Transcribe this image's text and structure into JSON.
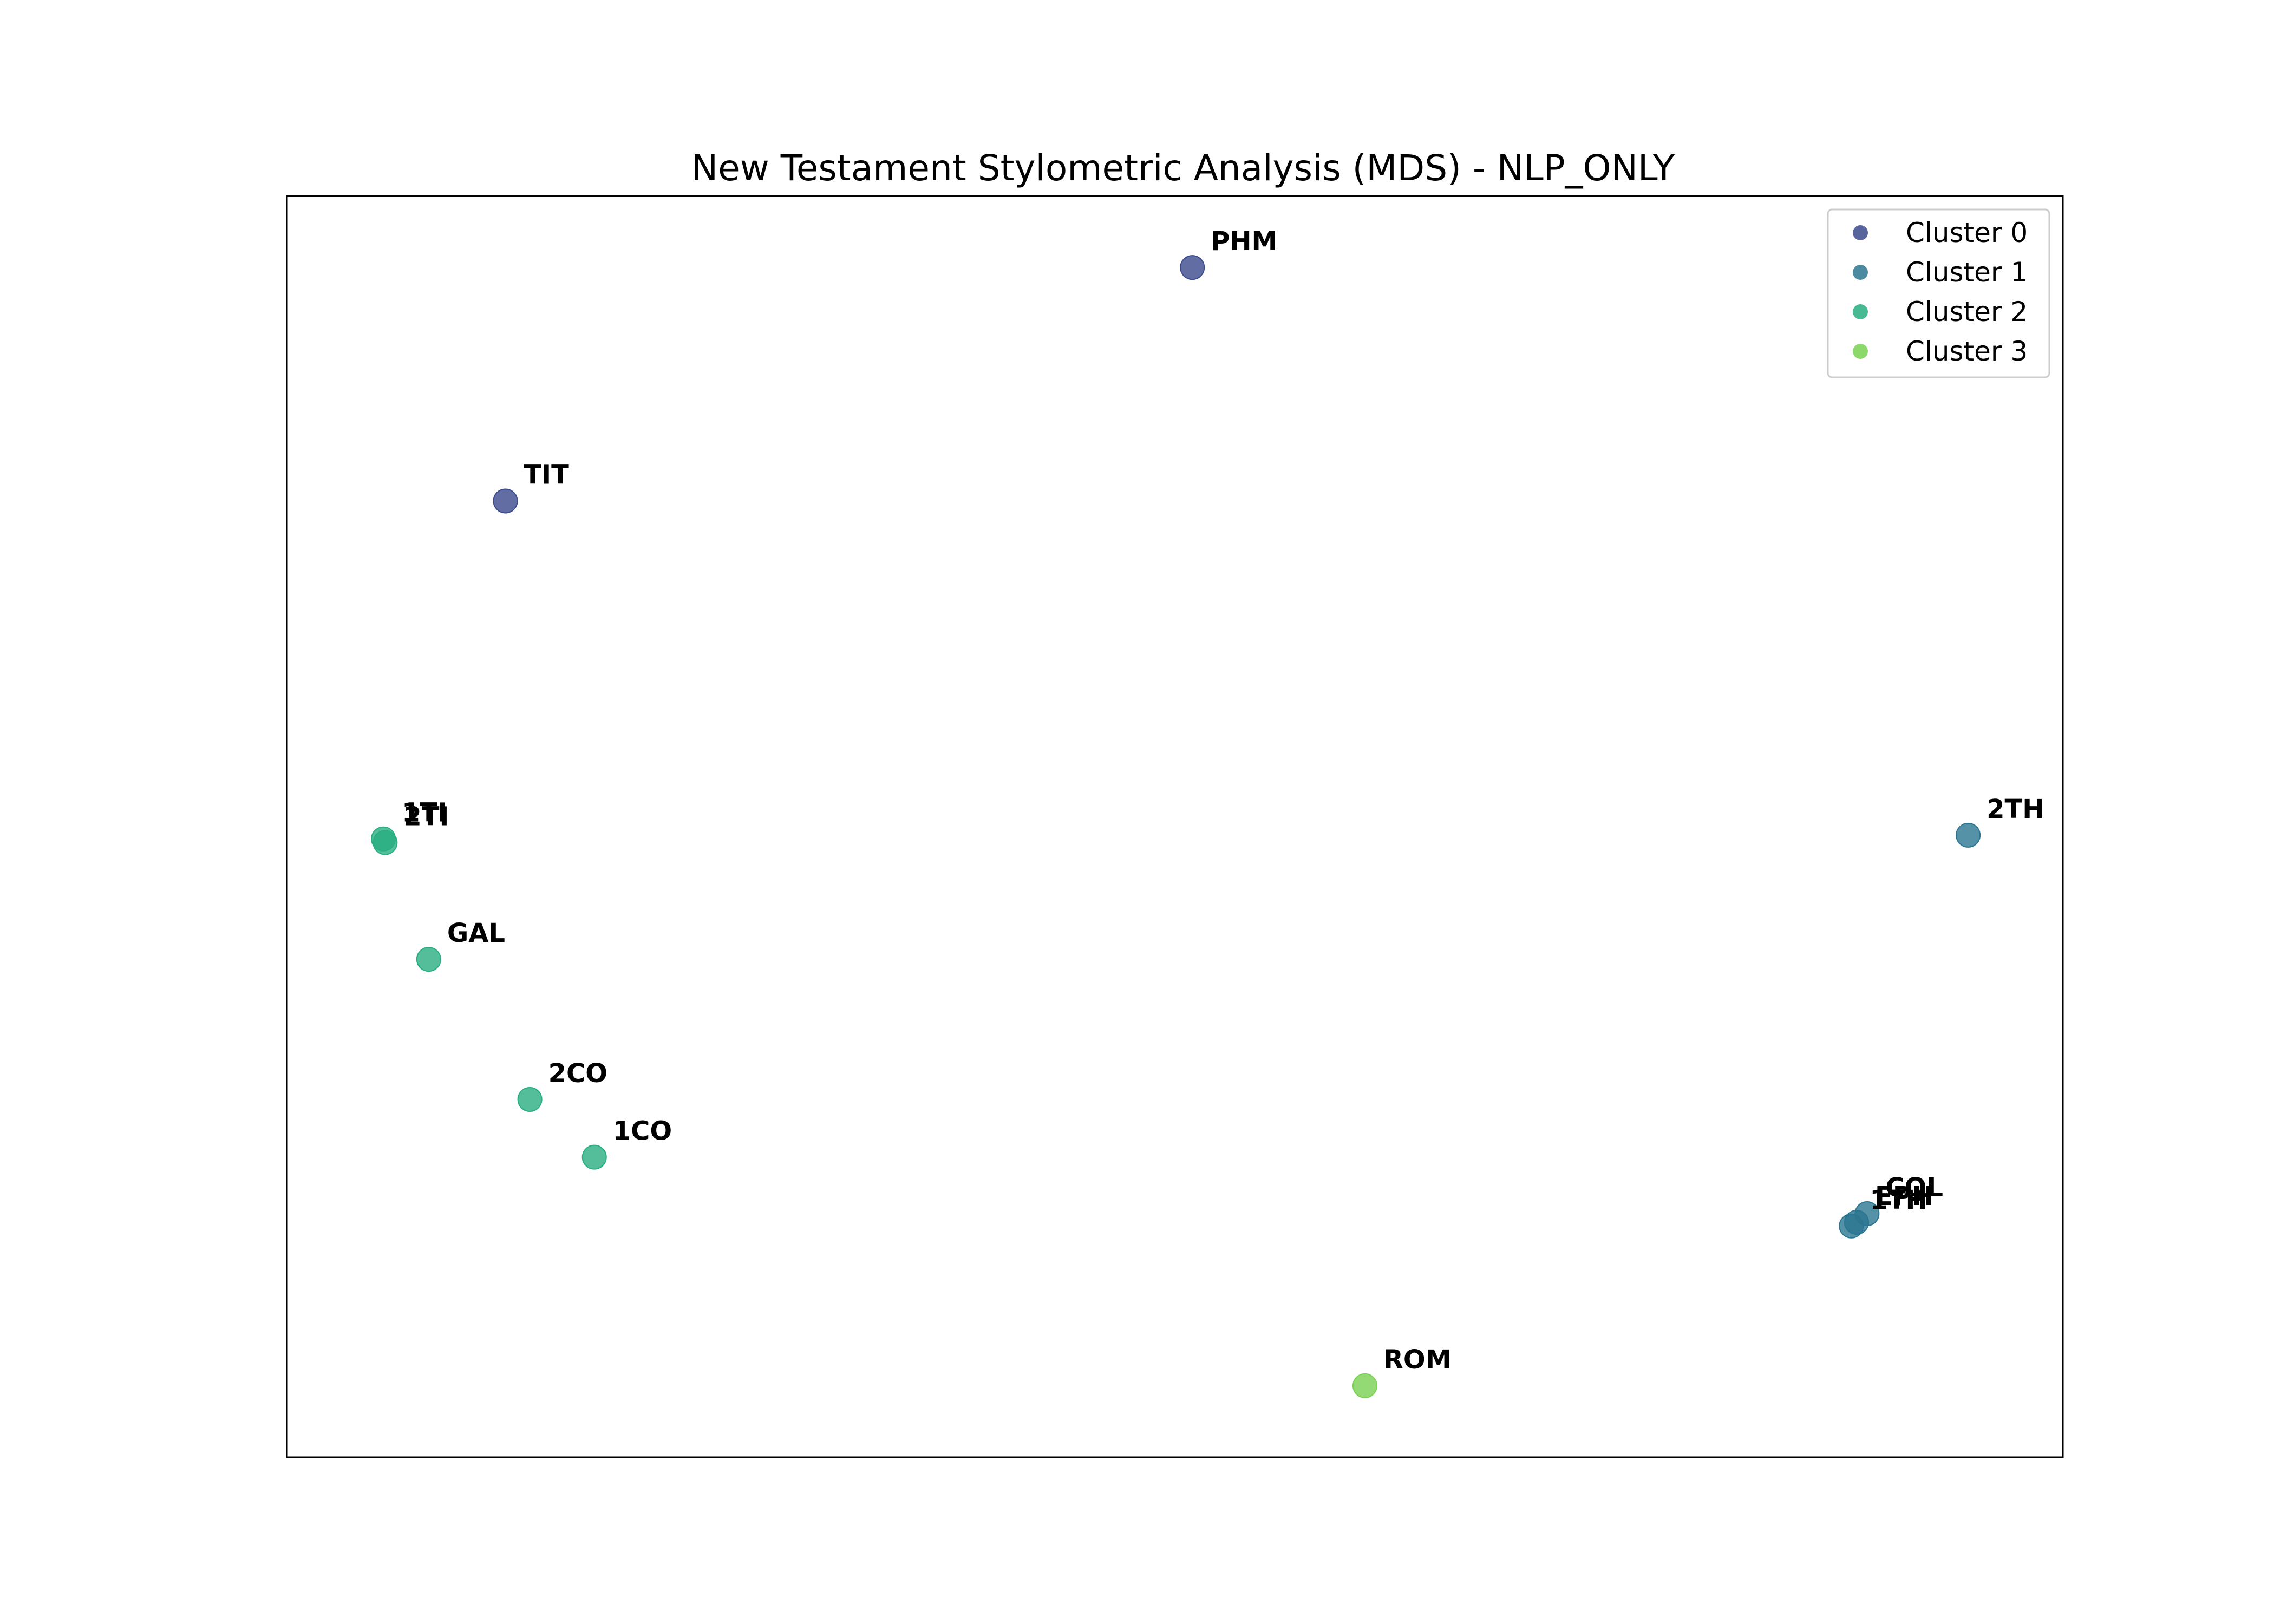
{
  "chart_data": {
    "type": "scatter",
    "title": "New Testament Stylometric Analysis (MDS) - NLP_ONLY",
    "xlabel": "",
    "ylabel": "",
    "grid": false,
    "axis_ticks": false,
    "legend_position": "upper right",
    "xlim": [
      0,
      100
    ],
    "ylim": [
      0,
      100
    ],
    "colors": {
      "Cluster 0": "#3b4a8c",
      "Cluster 1": "#2b7591",
      "Cluster 2": "#28ae80",
      "Cluster 3": "#79d151"
    },
    "series": [
      {
        "name": "Cluster 0",
        "points": [
          {
            "label": "PHM",
            "x": 51.0,
            "y": 95.5
          },
          {
            "label": "TIT",
            "x": 11.6,
            "y": 76.5
          }
        ]
      },
      {
        "name": "Cluster 1",
        "points": [
          {
            "label": "2TH",
            "x": 95.5,
            "y": 49.3
          },
          {
            "label": "COL",
            "x": 89.7,
            "y": 18.5
          },
          {
            "label": "EPH",
            "x": 89.1,
            "y": 17.8
          },
          {
            "label": "1TH",
            "x": 88.8,
            "y": 17.5
          }
        ]
      },
      {
        "name": "Cluster 2",
        "points": [
          {
            "label": "1TI",
            "x": 4.6,
            "y": 49.0
          },
          {
            "label": "2TI",
            "x": 4.7,
            "y": 48.7
          },
          {
            "label": "GAL",
            "x": 7.2,
            "y": 39.2
          },
          {
            "label": "2CO",
            "x": 13.0,
            "y": 27.8
          },
          {
            "label": "1CO",
            "x": 16.7,
            "y": 23.1
          }
        ]
      },
      {
        "name": "Cluster 3",
        "points": [
          {
            "label": "ROM",
            "x": 60.9,
            "y": 4.5
          }
        ]
      }
    ]
  }
}
